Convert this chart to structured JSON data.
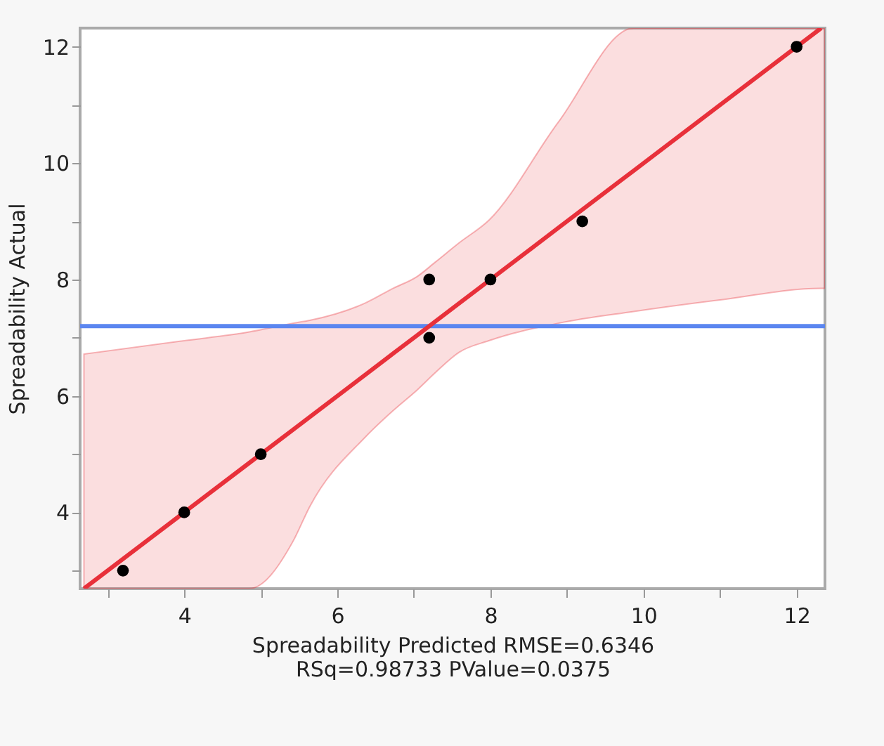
{
  "chart_data": {
    "type": "scatter",
    "xlabel": "Spreadability Predicted RMSE=0.6346",
    "ylabel": "Spreadability Actual",
    "annotations": [
      "RSq=0.98733 PValue=0.0375"
    ],
    "xlim": [
      2.64,
      12.37
    ],
    "ylim": [
      2.69,
      12.32
    ],
    "xticks": [
      {
        "value": 3,
        "label": null
      },
      4,
      {
        "value": 5,
        "label": null
      },
      6,
      {
        "value": 7,
        "label": null
      },
      8,
      {
        "value": 9,
        "label": null
      },
      10,
      {
        "value": 11,
        "label": null
      },
      12
    ],
    "yticks": [
      {
        "value": 3,
        "label": null
      },
      4,
      {
        "value": 5,
        "label": null
      },
      6,
      {
        "value": 7,
        "label": null
      },
      8,
      {
        "value": 9,
        "label": null
      },
      10,
      {
        "value": 11,
        "label": null
      },
      12
    ],
    "grid": false,
    "marker": "circle",
    "series": [
      {
        "type": "line",
        "color": "#e8303a",
        "line_style": "solid",
        "marker": "none",
        "x": [
          2.69,
          4.0,
          4.85,
          5.42,
          5.64,
          6.37,
          6.73,
          7.04,
          7.28,
          7.59,
          7.98,
          8.89,
          9.87,
          11.0,
          12.32,
          12.37
        ],
        "values": [
          2.69,
          4.0,
          4.85,
          5.42,
          5.64,
          6.37,
          6.73,
          7.04,
          7.28,
          7.59,
          7.98,
          8.89,
          9.87,
          11.0,
          12.32,
          null
        ],
        "lower": [
          2.69,
          2.69,
          2.69,
          3.5,
          4.1,
          5.3,
          5.75,
          6.1,
          6.4,
          6.75,
          6.95,
          7.25,
          7.45,
          7.65,
          7.85,
          7.85
        ],
        "upper": [
          6.72,
          6.95,
          7.1,
          7.25,
          7.3,
          7.6,
          7.85,
          8.05,
          8.3,
          8.63,
          9.02,
          10.71,
          12.32,
          12.32,
          12.32,
          12.32
        ]
      },
      {
        "type": "scatter",
        "color": "#000000",
        "x": [
          3.2,
          4,
          5,
          7.2,
          7.2,
          8,
          9.2,
          12
        ],
        "values": [
          3,
          4,
          5,
          8,
          7,
          8,
          9,
          12
        ]
      }
    ],
    "ref_lines": [
      {
        "axis": "y",
        "value": 7.2,
        "color": "#5b86f0"
      }
    ]
  }
}
